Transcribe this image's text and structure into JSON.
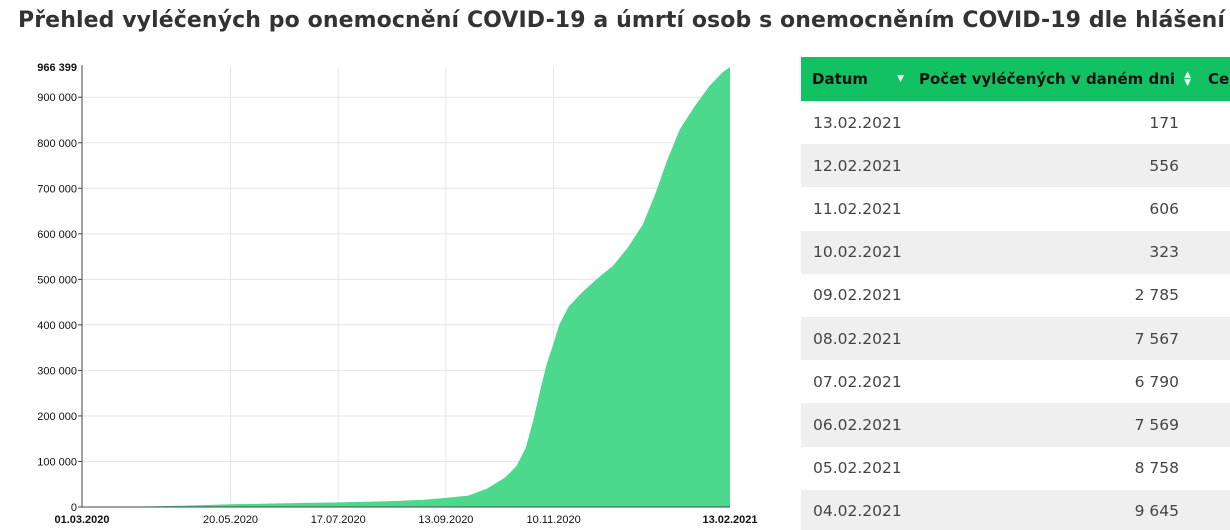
{
  "title": "Přehled vyléčených po onemocnění COVID-19 a úmrtí osob s onemocněním COVID-19 dle hlášení KHS",
  "chart_data": {
    "type": "area",
    "series_color": "#4cd98d",
    "grid": true,
    "ylim": [
      0,
      966399
    ],
    "y_ticks": [
      {
        "value": 0,
        "label": "0"
      },
      {
        "value": 100000,
        "label": "100 000"
      },
      {
        "value": 200000,
        "label": "200 000"
      },
      {
        "value": 300000,
        "label": "300 000"
      },
      {
        "value": 400000,
        "label": "400 000"
      },
      {
        "value": 500000,
        "label": "500 000"
      },
      {
        "value": 600000,
        "label": "600 000"
      },
      {
        "value": 700000,
        "label": "700 000"
      },
      {
        "value": 800000,
        "label": "800 000"
      },
      {
        "value": 900000,
        "label": "900 000"
      }
    ],
    "y_max_label": "966 399",
    "x_range": [
      "2020-03-01",
      "2021-02-13"
    ],
    "x_ticks": [
      {
        "date": "2020-03-01",
        "label": "01.03.2020",
        "bold": true
      },
      {
        "date": "2020-05-20",
        "label": "20.05.2020",
        "bold": false
      },
      {
        "date": "2020-07-17",
        "label": "17.07.2020",
        "bold": false
      },
      {
        "date": "2020-09-13",
        "label": "13.09.2020",
        "bold": false
      },
      {
        "date": "2020-11-10",
        "label": "10.11.2020",
        "bold": false
      },
      {
        "date": "2021-02-13",
        "label": "13.02.2021",
        "bold": true
      }
    ],
    "points": [
      [
        "2020-03-01",
        0
      ],
      [
        "2020-04-01",
        800
      ],
      [
        "2020-05-01",
        3500
      ],
      [
        "2020-05-20",
        6000
      ],
      [
        "2020-06-15",
        8000
      ],
      [
        "2020-07-17",
        10000
      ],
      [
        "2020-08-15",
        13000
      ],
      [
        "2020-09-01",
        16000
      ],
      [
        "2020-09-13",
        20000
      ],
      [
        "2020-09-25",
        25000
      ],
      [
        "2020-10-05",
        40000
      ],
      [
        "2020-10-15",
        65000
      ],
      [
        "2020-10-21",
        90000
      ],
      [
        "2020-10-26",
        130000
      ],
      [
        "2020-10-30",
        190000
      ],
      [
        "2020-11-03",
        260000
      ],
      [
        "2020-11-06",
        310000
      ],
      [
        "2020-11-10",
        360000
      ],
      [
        "2020-11-13",
        400000
      ],
      [
        "2020-11-18",
        440000
      ],
      [
        "2020-11-25",
        470000
      ],
      [
        "2020-12-03",
        500000
      ],
      [
        "2020-12-12",
        530000
      ],
      [
        "2020-12-20",
        570000
      ],
      [
        "2020-12-28",
        620000
      ],
      [
        "2021-01-04",
        690000
      ],
      [
        "2021-01-10",
        760000
      ],
      [
        "2021-01-17",
        830000
      ],
      [
        "2021-01-25",
        880000
      ],
      [
        "2021-02-02",
        925000
      ],
      [
        "2021-02-09",
        955000
      ],
      [
        "2021-02-13",
        966399
      ]
    ]
  },
  "table": {
    "headers": {
      "date": "Datum",
      "healed": "Počet vyléčených v daném dni",
      "total": "Cel"
    },
    "rows": [
      {
        "date": "13.02.2021",
        "value": "171"
      },
      {
        "date": "12.02.2021",
        "value": "556"
      },
      {
        "date": "11.02.2021",
        "value": "606"
      },
      {
        "date": "10.02.2021",
        "value": "323"
      },
      {
        "date": "09.02.2021",
        "value": "2 785"
      },
      {
        "date": "08.02.2021",
        "value": "7 567"
      },
      {
        "date": "07.02.2021",
        "value": "6 790"
      },
      {
        "date": "06.02.2021",
        "value": "7 569"
      },
      {
        "date": "05.02.2021",
        "value": "8 758"
      },
      {
        "date": "04.02.2021",
        "value": "9 645"
      }
    ]
  }
}
